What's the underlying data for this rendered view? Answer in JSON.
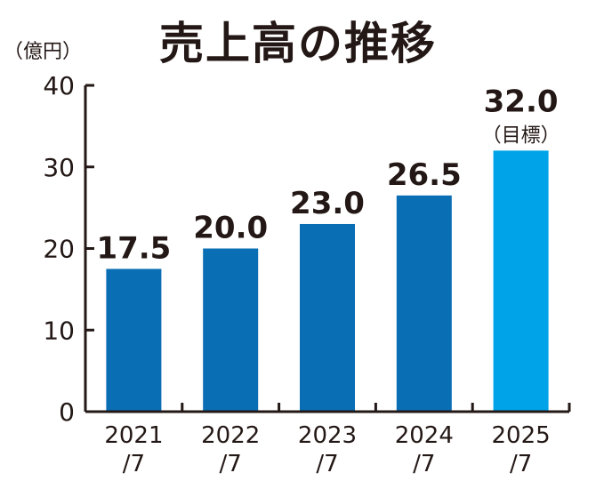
{
  "chart_data": {
    "type": "bar",
    "title": "売上高の推移",
    "ylabel": "（億円）",
    "categories": [
      "2021\n/7",
      "2022\n/7",
      "2023\n/7",
      "2024\n/7",
      "2025\n/7"
    ],
    "values": [
      17.5,
      20.0,
      23.0,
      26.5,
      32.0
    ],
    "value_labels": [
      "17.5",
      "20.0",
      "23.0",
      "26.5",
      "32.0"
    ],
    "notes": [
      "",
      "",
      "",
      "",
      "（目標）"
    ],
    "yticks": [
      "0",
      "10",
      "20",
      "30",
      "40"
    ],
    "ylim": [
      0,
      40
    ],
    "colors": [
      "#0a6eb4",
      "#0a6eb4",
      "#0a6eb4",
      "#0a6eb4",
      "#00a3e8"
    ],
    "grid": false,
    "legend": "none"
  }
}
